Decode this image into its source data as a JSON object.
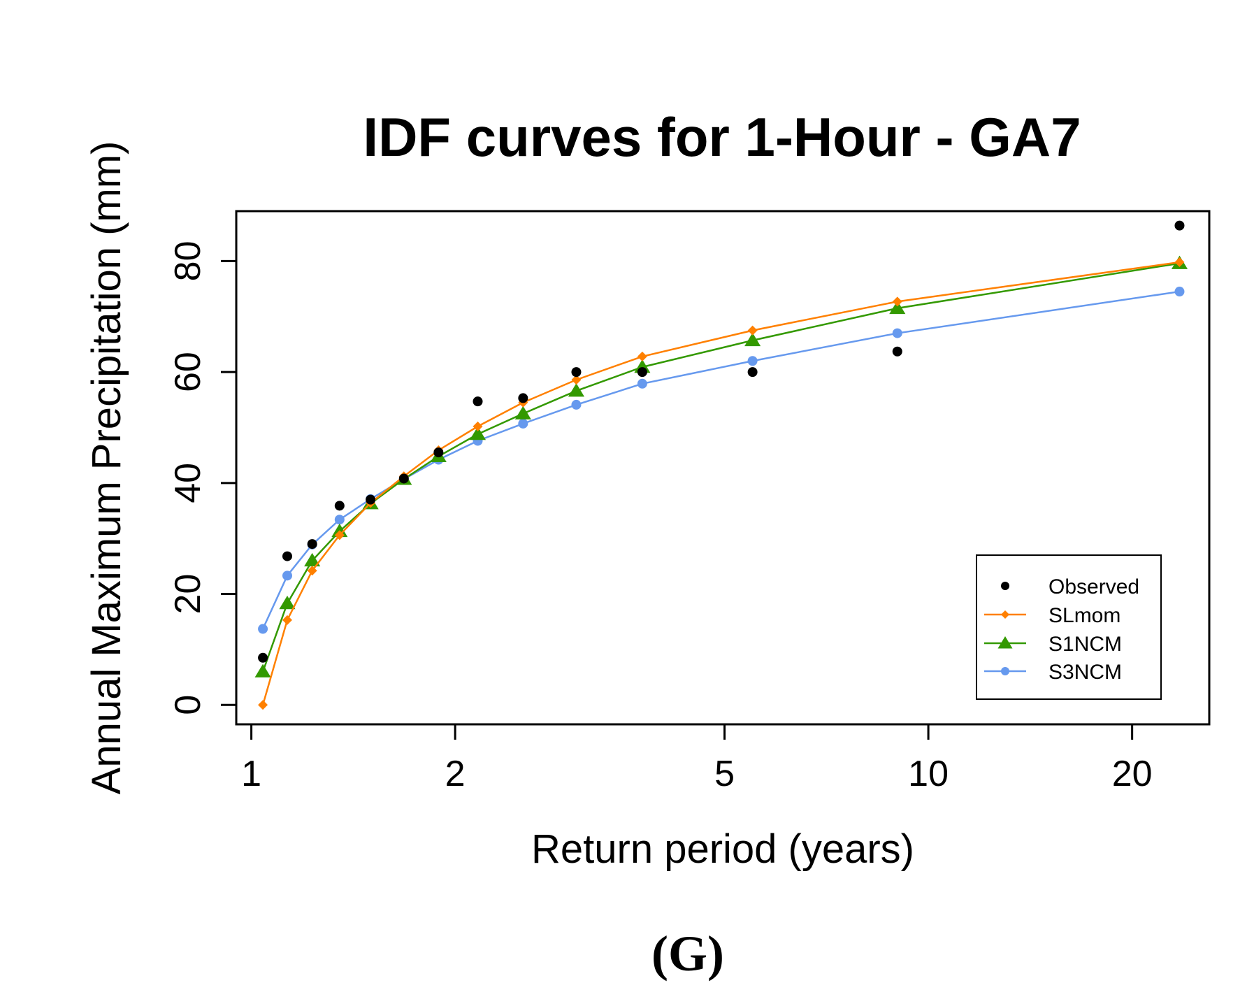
{
  "panel_label": "(G)",
  "chart_data": {
    "type": "line",
    "title": "IDF curves for 1-Hour - GA7",
    "xlabel": "Return period (years)",
    "ylabel": "Annual Maximum Precipitation (mm)",
    "xscale": "log",
    "xlim": [
      0.95,
      26
    ],
    "ylim": [
      -3.5,
      89
    ],
    "xticks": [
      1,
      2,
      5,
      10,
      20
    ],
    "xtick_labels": [
      "1",
      "2",
      "5",
      "10",
      "20"
    ],
    "yticks": [
      0,
      20,
      40,
      60,
      80
    ],
    "ytick_labels": [
      "0",
      "20",
      "40",
      "60",
      "80"
    ],
    "legend_position": "bottom-right",
    "x": [
      1.04,
      1.13,
      1.23,
      1.35,
      1.5,
      1.68,
      1.89,
      2.16,
      2.52,
      3.02,
      3.78,
      5.5,
      9,
      23.5
    ],
    "series": [
      {
        "name": "Observed",
        "color": "#000000",
        "marker": "dot",
        "line": false,
        "values": [
          8.5,
          26.8,
          29,
          35.9,
          37,
          40.8,
          45.5,
          54.7,
          55.3,
          60,
          60,
          60,
          63.7,
          86.4
        ]
      },
      {
        "name": "SLmom",
        "color": "#ff8000",
        "marker": "diamond",
        "line": true,
        "values": [
          0,
          15.3,
          24.2,
          30.6,
          36.4,
          41.2,
          45.9,
          50.2,
          54.5,
          58.6,
          62.8,
          67.5,
          72.7,
          79.8
        ]
      },
      {
        "name": "S1NCM",
        "color": "#339900",
        "marker": "triangle",
        "line": true,
        "values": [
          6,
          18.3,
          26,
          31.3,
          36.3,
          40.7,
          44.8,
          48.8,
          52.5,
          56.6,
          60.9,
          65.7,
          71.5,
          79.6
        ]
      },
      {
        "name": "S3NCM",
        "color": "#6699ee",
        "marker": "dot",
        "line": true,
        "values": [
          13.7,
          23.3,
          28.9,
          33.4,
          37.1,
          40.7,
          44.2,
          47.6,
          50.7,
          54.1,
          57.9,
          62,
          67,
          74.5
        ]
      }
    ]
  }
}
